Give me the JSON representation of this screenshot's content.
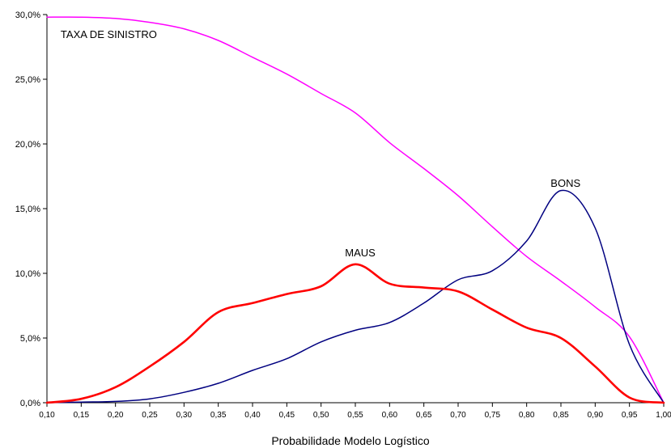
{
  "chart_data": {
    "type": "line",
    "title": "",
    "xlabel": "Probabilidade Modelo Logístico",
    "ylabel": "",
    "x": [
      0.1,
      0.15,
      0.2,
      0.25,
      0.3,
      0.35,
      0.4,
      0.45,
      0.5,
      0.55,
      0.6,
      0.65,
      0.7,
      0.75,
      0.8,
      0.85,
      0.9,
      0.95,
      1.0
    ],
    "xlim": [
      0.1,
      1.0
    ],
    "ylim": [
      0,
      30
    ],
    "x_tick_labels": [
      "0,10",
      "0,15",
      "0,20",
      "0,25",
      "0,30",
      "0,35",
      "0,40",
      "0,45",
      "0,50",
      "0,55",
      "0,60",
      "0,65",
      "0,70",
      "0,75",
      "0,80",
      "0,85",
      "0,90",
      "0,95",
      "1,00"
    ],
    "y_ticks": [
      0,
      5,
      10,
      15,
      20,
      25,
      30
    ],
    "y_tick_labels": [
      "0,0%",
      "5,0%",
      "10,0%",
      "15,0%",
      "20,0%",
      "25,0%",
      "30,0%"
    ],
    "grid": false,
    "legend": "none",
    "series": [
      {
        "name": "TAXA DE SINISTRO",
        "color": "#ff00ff",
        "values": [
          29.8,
          29.8,
          29.7,
          29.4,
          28.9,
          28.0,
          26.7,
          25.4,
          23.9,
          22.4,
          20.1,
          18.1,
          16.0,
          13.6,
          11.3,
          9.4,
          7.4,
          5.1,
          0.0
        ]
      },
      {
        "name": "BONS",
        "color": "#000080",
        "values": [
          0.0,
          0.05,
          0.1,
          0.3,
          0.8,
          1.5,
          2.5,
          3.4,
          4.7,
          5.6,
          6.2,
          7.7,
          9.5,
          10.2,
          12.5,
          16.4,
          13.5,
          4.5,
          0.0
        ]
      },
      {
        "name": "MAUS",
        "color": "#ff0000",
        "values": [
          0.0,
          0.3,
          1.2,
          2.8,
          4.7,
          7.0,
          7.7,
          8.4,
          9.0,
          10.7,
          9.2,
          8.9,
          8.6,
          7.2,
          5.8,
          5.0,
          2.8,
          0.4,
          0.0
        ]
      }
    ],
    "annotations": [
      {
        "text": "TAXA DE SINISTRO",
        "x": 0.12,
        "y": 28.2
      },
      {
        "text": "BONS",
        "x": 0.835,
        "y": 16.7
      },
      {
        "text": "MAUS",
        "x": 0.535,
        "y": 11.3
      }
    ]
  }
}
